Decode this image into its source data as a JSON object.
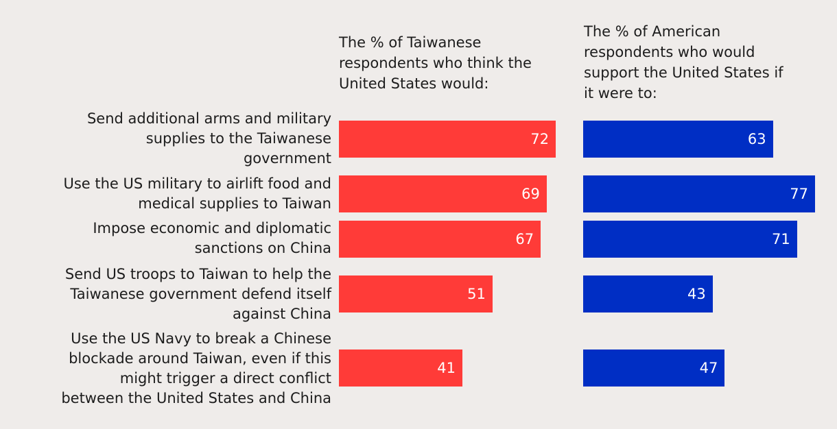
{
  "chart_data": {
    "type": "bar",
    "orientation": "horizontal",
    "categories": [
      "Send additional arms and military\nsupplies to the Taiwanese\ngovernment",
      "Use the US military to airlift food and\nmedical supplies to Taiwan",
      "Impose economic and diplomatic\nsanctions on China",
      "Send US troops to Taiwan to help the\nTaiwanese government defend itself\nagainst China",
      "Use the US Navy to break a Chinese\nblockade around Taiwan, even if this\nmight trigger a direct conflict\nbetween the United States and China"
    ],
    "series": [
      {
        "header": "The % of Taiwanese\nrespondents who think the\nUnited States would:",
        "values": [
          72,
          69,
          67,
          51,
          41
        ],
        "color": "#ff3b38"
      },
      {
        "header": "The % of American\nrespondents who would\nsupport the United States if\nit were to:",
        "values": [
          63,
          77,
          71,
          43,
          47
        ],
        "color": "#002ec4"
      }
    ],
    "xlim": [
      0,
      100
    ],
    "grid": false,
    "legend": "none"
  }
}
